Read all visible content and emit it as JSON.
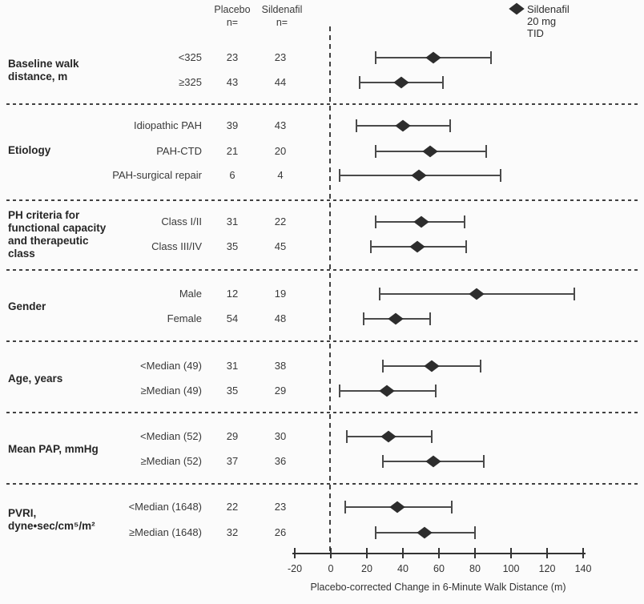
{
  "legend": {
    "label": "Sildenafil 20 mg TID",
    "marker": "diamond-icon",
    "marker_color": "#2d2d2d"
  },
  "columns": {
    "placebo": "Placebo",
    "sildenafil": "Sildenafil",
    "n_label": "n="
  },
  "axis": {
    "title": "Placebo-corrected Change in 6-Minute Walk Distance (m)",
    "ticks": [
      -20,
      0,
      20,
      40,
      60,
      80,
      100,
      120,
      140
    ],
    "min": -20,
    "max": 140
  },
  "colors": {
    "line": "#4a4a4a",
    "marker": "#2d2d2d",
    "dashed": "#414141",
    "text": "#3a3a3a"
  },
  "chart_data": {
    "type": "forest",
    "xlabel": "Placebo-corrected Change in 6-Minute Walk Distance (m)",
    "xlim": [
      -20,
      140
    ],
    "reference_line": 0,
    "legend": "Sildenafil 20 mg TID",
    "grid": false,
    "sections": [
      {
        "category": "Baseline walk distance, m",
        "category_lines": [
          "Baseline walk",
          "distance, m"
        ],
        "rows": [
          {
            "label": "<325",
            "placebo_n": "23",
            "sildenafil_n": "23",
            "estimate": 57,
            "ci_low": 25,
            "ci_high": 89
          },
          {
            "label": "≥325",
            "placebo_n": "43",
            "sildenafil_n": "44",
            "estimate": 39,
            "ci_low": 16,
            "ci_high": 62
          }
        ]
      },
      {
        "category": "Etiology",
        "category_lines": [
          "Etiology"
        ],
        "rows": [
          {
            "label": "Idiopathic PAH",
            "placebo_n": "39",
            "sildenafil_n": "43",
            "estimate": 40,
            "ci_low": 14,
            "ci_high": 66
          },
          {
            "label": "PAH-CTD",
            "placebo_n": "21",
            "sildenafil_n": "20",
            "estimate": 55,
            "ci_low": 25,
            "ci_high": 86
          },
          {
            "label": "PAH-surgical repair",
            "placebo_n": "6",
            "sildenafil_n": "4",
            "estimate": 49,
            "ci_low": 5,
            "ci_high": 94
          }
        ]
      },
      {
        "category": "PH criteria for functional capacity and therapeutic class",
        "category_lines": [
          "PH criteria for",
          "functional capacity",
          "and therapeutic",
          "class"
        ],
        "rows": [
          {
            "label": "Class I/II",
            "placebo_n": "31",
            "sildenafil_n": "22",
            "estimate": 50,
            "ci_low": 25,
            "ci_high": 74
          },
          {
            "label": "Class III/IV",
            "placebo_n": "35",
            "sildenafil_n": "45",
            "estimate": 48,
            "ci_low": 22,
            "ci_high": 75
          }
        ]
      },
      {
        "category": "Gender",
        "category_lines": [
          "Gender"
        ],
        "rows": [
          {
            "label": "Male",
            "placebo_n": "12",
            "sildenafil_n": "19",
            "estimate": 81,
            "ci_low": 27,
            "ci_high": 135
          },
          {
            "label": "Female",
            "placebo_n": "54",
            "sildenafil_n": "48",
            "estimate": 36,
            "ci_low": 18,
            "ci_high": 55
          }
        ]
      },
      {
        "category": "Age, years",
        "category_lines": [
          "Age, years"
        ],
        "rows": [
          {
            "label": "<Median (49)",
            "placebo_n": "31",
            "sildenafil_n": "38",
            "estimate": 56,
            "ci_low": 29,
            "ci_high": 83
          },
          {
            "label": "≥Median (49)",
            "placebo_n": "35",
            "sildenafil_n": "29",
            "estimate": 31,
            "ci_low": 5,
            "ci_high": 58
          }
        ]
      },
      {
        "category": "Mean PAP, mmHg",
        "category_lines": [
          "Mean PAP, mmHg"
        ],
        "rows": [
          {
            "label": "<Median (52)",
            "placebo_n": "29",
            "sildenafil_n": "30",
            "estimate": 32,
            "ci_low": 9,
            "ci_high": 56
          },
          {
            "label": "≥Median (52)",
            "placebo_n": "37",
            "sildenafil_n": "36",
            "estimate": 57,
            "ci_low": 29,
            "ci_high": 85
          }
        ]
      },
      {
        "category": "PVRI, dyne•sec/cm⁵/m²",
        "category_lines": [
          "PVRI,",
          "dyne•sec/cm⁵/m²"
        ],
        "rows": [
          {
            "label": "<Median (1648)",
            "placebo_n": "22",
            "sildenafil_n": "23",
            "estimate": 37,
            "ci_low": 8,
            "ci_high": 67
          },
          {
            "label": "≥Median (1648)",
            "placebo_n": "32",
            "sildenafil_n": "26",
            "estimate": 52,
            "ci_low": 25,
            "ci_high": 80
          }
        ]
      }
    ]
  }
}
